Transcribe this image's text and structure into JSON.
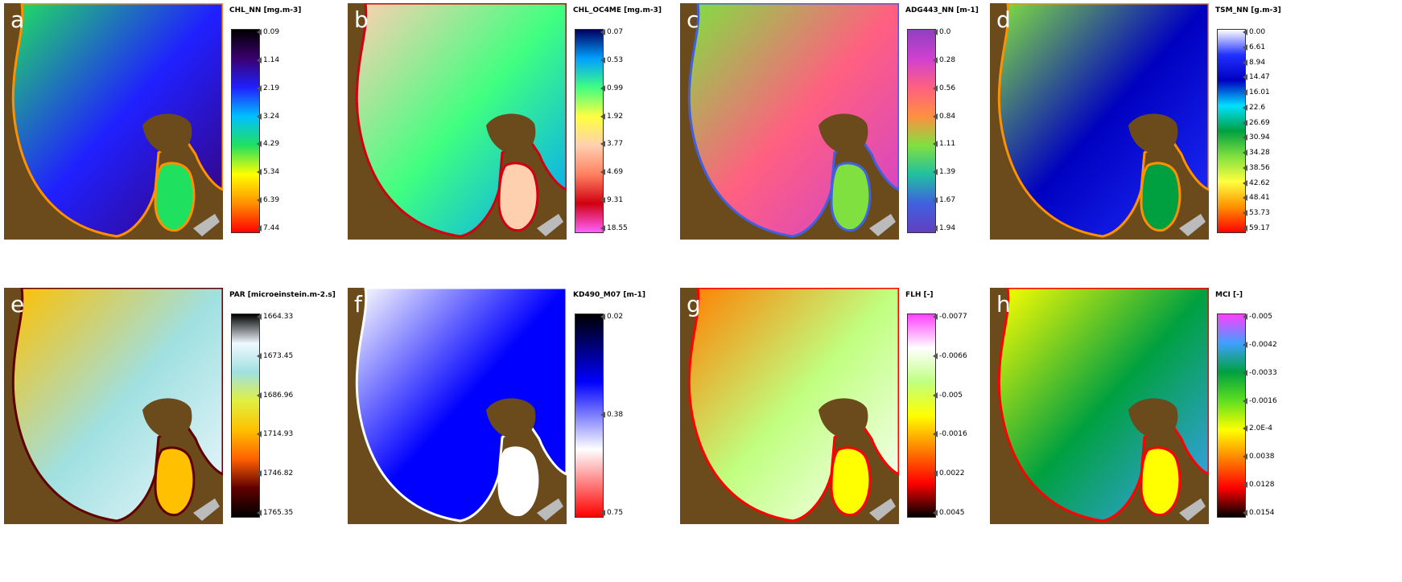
{
  "panels": [
    {
      "letter": "a",
      "title": "CHL_NN [mg.m-3]",
      "ticks": [
        "0.09",
        "1.14",
        "2.19",
        "3.24",
        "4.29",
        "5.34",
        "6.39",
        "7.44"
      ],
      "colormap": [
        "#000000",
        "#3a0070",
        "#2020ff",
        "#00c0ff",
        "#20e060",
        "#ffff00",
        "#ff9000",
        "#ff0000"
      ]
    },
    {
      "letter": "b",
      "title": "CHL_OC4ME [mg.m-3]",
      "ticks": [
        "0.07",
        "0.53",
        "0.99",
        "1.92",
        "3.77",
        "4.69",
        "9.31",
        "18.55"
      ],
      "colormap": [
        "#000060",
        "#00a0ff",
        "#40ff80",
        "#ffff40",
        "#ffd0b0",
        "#ff8060",
        "#d00010",
        "#ff60ff"
      ]
    },
    {
      "letter": "c",
      "title": "ADG443_NN [m-1]",
      "ticks": [
        "0.0",
        "0.28",
        "0.56",
        "0.84",
        "1.11",
        "1.39",
        "1.67",
        "1.94"
      ],
      "colormap": [
        "#9040c0",
        "#d040d0",
        "#ff6080",
        "#ff9040",
        "#80e040",
        "#20c0a0",
        "#4060e0",
        "#6040c0"
      ]
    },
    {
      "letter": "d",
      "title": "TSM_NN [g.m-3]",
      "ticks": [
        "0.00",
        "6.61",
        "8.94",
        "14.47",
        "16.01",
        "22.6",
        "26.69",
        "30.94",
        "34.28",
        "38.56",
        "42.62",
        "48.41",
        "53.73",
        "59.17"
      ],
      "colormap": [
        "#ffffff",
        "#2030ff",
        "#0000c0",
        "#00e0ff",
        "#00a040",
        "#80e040",
        "#ffff40",
        "#ff9000",
        "#ff0000"
      ]
    },
    {
      "letter": "e",
      "title": "PAR [microeinstein.m-2.s]",
      "ticks": [
        "1664.33",
        "1673.45",
        "1686.96",
        "1714.93",
        "1746.82",
        "1765.35"
      ],
      "colormap": [
        "#000000",
        "#f0f8ff",
        "#a0e0e0",
        "#e0f040",
        "#ffc000",
        "#ff6000",
        "#600000",
        "#000000"
      ]
    },
    {
      "letter": "f",
      "title": "KD490_M07 [m-1]",
      "ticks": [
        "0.02",
        "0.38",
        "0.75"
      ],
      "colormap": [
        "#000000",
        "#0000ff",
        "#ffffff",
        "#ff0000"
      ]
    },
    {
      "letter": "g",
      "title": "FLH [-]",
      "ticks": [
        "-0.0077",
        "-0.0066",
        "-0.005",
        "-0.0016",
        "0.0022",
        "0.0045"
      ],
      "colormap": [
        "#ff40ff",
        "#ffffff",
        "#c0ff80",
        "#ffff00",
        "#ff8000",
        "#ff0000",
        "#000000"
      ]
    },
    {
      "letter": "h",
      "title": "MCI [-]",
      "ticks": [
        "-0.005",
        "-0.0042",
        "-0.0033",
        "-0.0016",
        "2.0E-4",
        "0.0038",
        "0.0128",
        "0.0154"
      ],
      "colormap": [
        "#ff40ff",
        "#40a0ff",
        "#00a040",
        "#60e020",
        "#ffff00",
        "#ff8000",
        "#ff0000",
        "#000000"
      ]
    }
  ]
}
